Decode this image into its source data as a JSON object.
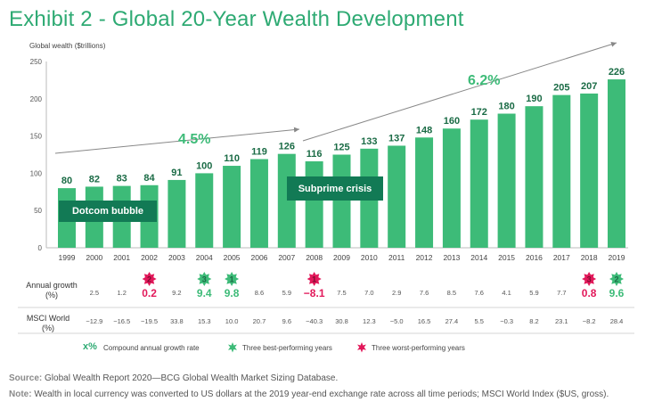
{
  "title": "Exhibit 2 - Global 20-Year Wealth Development",
  "colors": {
    "bar": "#3dbb78",
    "bar_label": "#1a6b45",
    "best": "#3dbb78",
    "worst": "#e2185a",
    "callout": "#127a55",
    "title": "#2eaa73"
  },
  "chart_data": {
    "type": "bar",
    "title": "Exhibit 2 - Global 20-Year Wealth Development",
    "ylabel": "Global wealth ($trillions)",
    "ylim": [
      0,
      250
    ],
    "yticks": [
      "0",
      "50",
      "100",
      "150",
      "200",
      "250"
    ],
    "categories": [
      "1999",
      "2000",
      "2001",
      "2002",
      "2003",
      "2004",
      "2005",
      "2006",
      "2007",
      "2008",
      "2009",
      "2010",
      "2011",
      "2012",
      "2013",
      "2014",
      "2015",
      "2016",
      "2017",
      "2018",
      "2019"
    ],
    "values": [
      80,
      82,
      83,
      84,
      91,
      100,
      110,
      119,
      126,
      116,
      125,
      133,
      137,
      148,
      160,
      172,
      180,
      190,
      205,
      207,
      226
    ],
    "value_labels": [
      "80",
      "82",
      "83",
      "84",
      "91",
      "100",
      "110",
      "119",
      "126",
      "116",
      "125",
      "133",
      "137",
      "148",
      "160",
      "172",
      "180",
      "190",
      "205",
      "207",
      "226"
    ],
    "annual_growth": [
      "2.5",
      "1.2",
      "0.2",
      "9.2",
      "9.4",
      "9.8",
      "8.6",
      "5.9",
      "−8.1",
      "7.5",
      "7.0",
      "2.9",
      "7.6",
      "8.5",
      "7.6",
      "4.1",
      "5.9",
      "7.7",
      "0.8",
      "9.6"
    ],
    "msci_world": [
      "−12.9",
      "−16.5",
      "−19.5",
      "33.8",
      "15.3",
      "10.0",
      "20.7",
      "9.6",
      "−40.3",
      "30.8",
      "12.3",
      "−5.0",
      "16.5",
      "27.4",
      "5.5",
      "−0.3",
      "8.2",
      "23.1",
      "−8.2",
      "28.4"
    ],
    "best_years": [
      {
        "year_index": 5,
        "rank": "3"
      },
      {
        "year_index": 6,
        "rank": "1"
      },
      {
        "year_index": 20,
        "rank": "2"
      }
    ],
    "worst_years": [
      {
        "year_index": 3,
        "rank": "2"
      },
      {
        "year_index": 9,
        "rank": "1"
      },
      {
        "year_index": 19,
        "rank": "3"
      }
    ],
    "cagr_labels": [
      "4.5%",
      "6.2%"
    ],
    "annotations": [
      "Dotcom bubble",
      "Subprime crisis"
    ],
    "grid": false
  },
  "rows": {
    "growth_label": "Annual growth\n(%)",
    "msci_label": "MSCI World\n(%)"
  },
  "legend": {
    "symbol": "x%",
    "cagr": "Compound annual growth rate",
    "best": "Three best-performing years",
    "worst": "Three worst-performing years"
  },
  "footer": {
    "source_label": "Source:",
    "source_text": "Global Wealth Report 2020—BCG Global Wealth Market Sizing Database.",
    "note_label": "Note:",
    "note_text": "Wealth in local currency was converted to US dollars at the 2019 year-end exchange rate across all time periods; MSCI World Index ($US, gross)."
  }
}
